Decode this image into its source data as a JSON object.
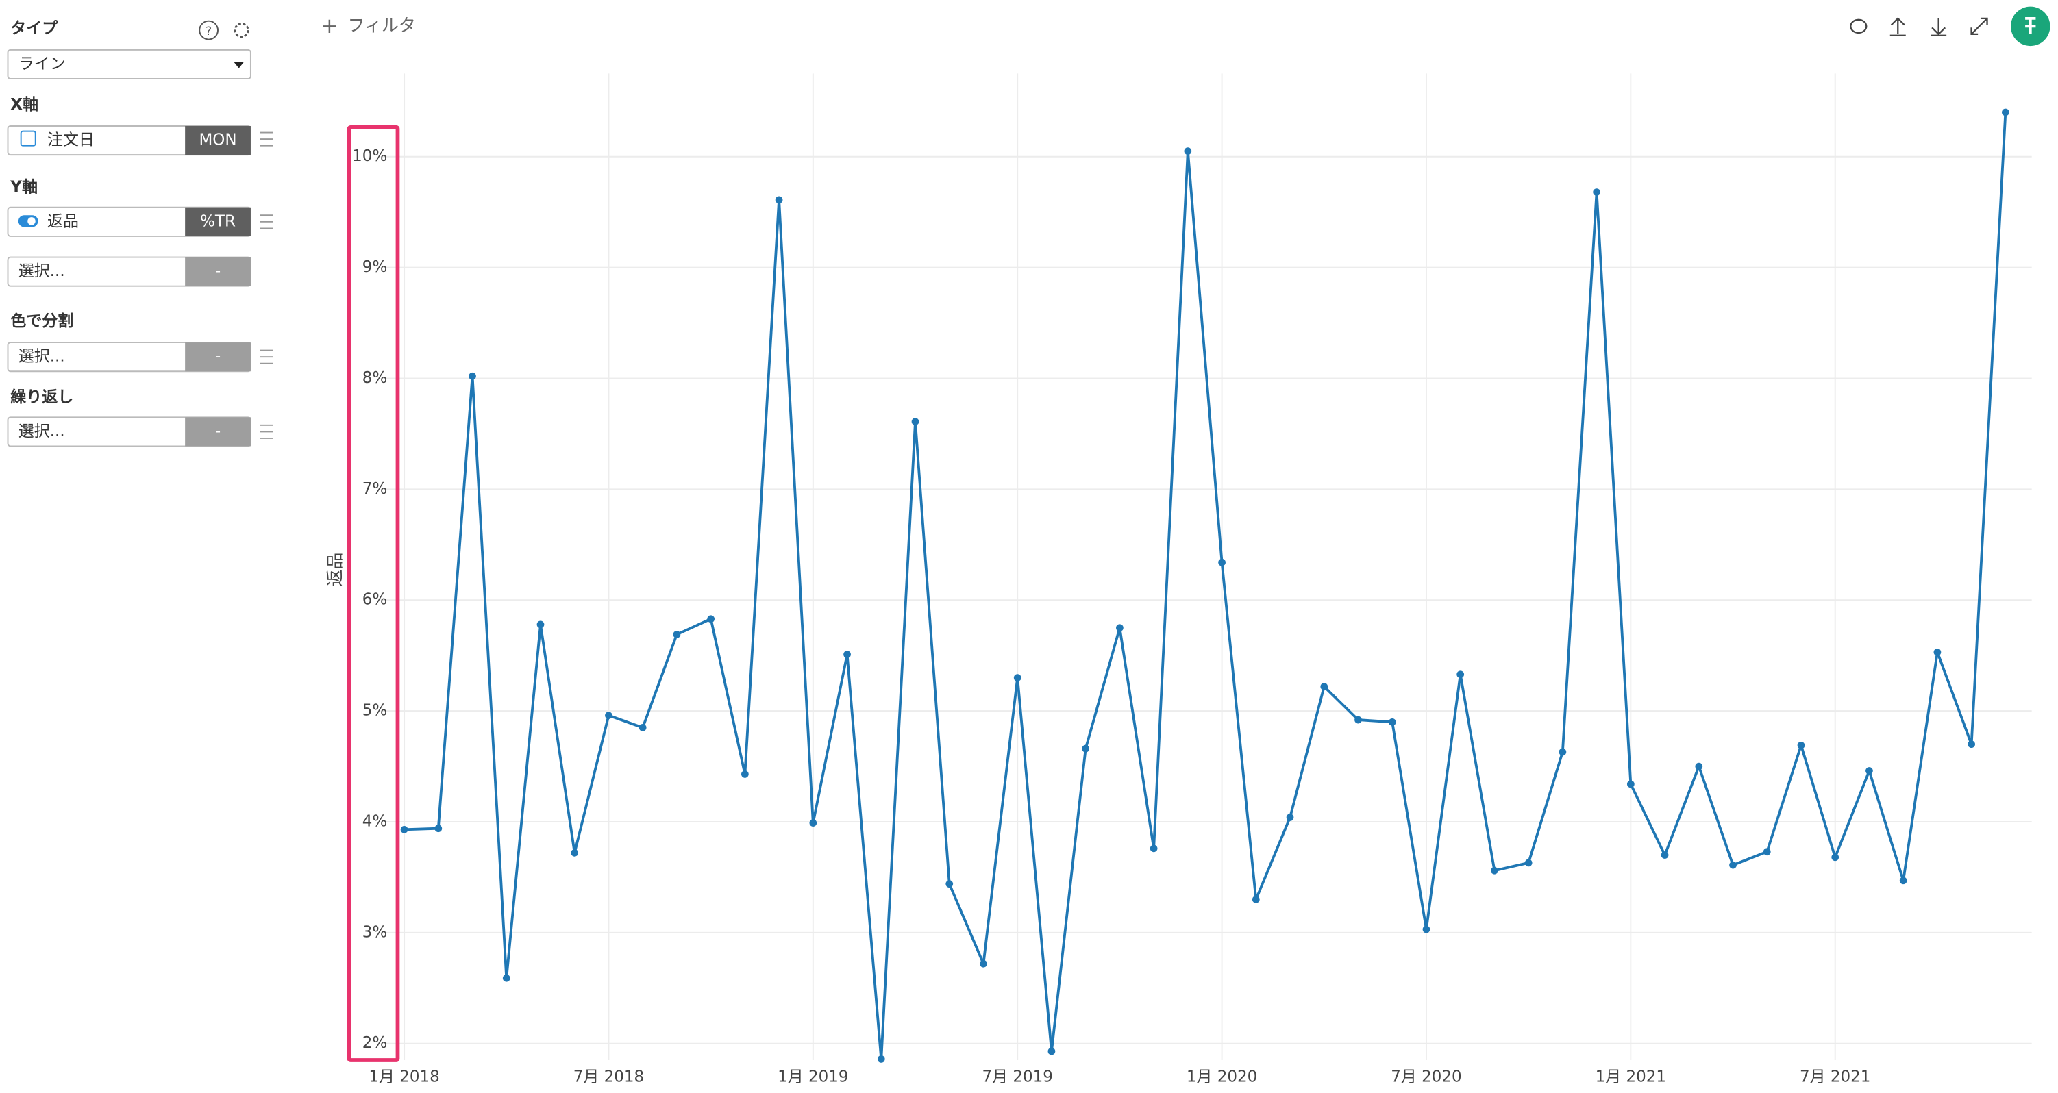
{
  "sidebar": {
    "type_label": "タイプ",
    "type_value": "ライン",
    "x_label": "X軸",
    "x_field": "注文日",
    "x_agg": "MON",
    "y_label": "Y軸",
    "y_field": "返品",
    "y_agg": "%TR",
    "y_extra": "選択...",
    "y_extra_agg": "-",
    "color_label": "色で分割",
    "color_field": "選択...",
    "color_agg": "-",
    "repeat_label": "繰り返し",
    "repeat_field": "選択...",
    "repeat_agg": "-"
  },
  "toolbar": {
    "filter": "フィルタ"
  },
  "chart_data": {
    "type": "line",
    "y_label": "返品",
    "color": "#1f77b4",
    "categories": [
      "1月 2018",
      null,
      null,
      null,
      null,
      null,
      "7月 2018",
      null,
      null,
      null,
      null,
      null,
      "1月 2019",
      null,
      null,
      null,
      null,
      null,
      "7月 2019",
      null,
      null,
      null,
      null,
      null,
      "1月 2020",
      null,
      null,
      null,
      null,
      null,
      "7月 2020",
      null,
      null,
      null,
      null,
      null,
      "1月 2021",
      null,
      null,
      null,
      null,
      null,
      "7月 2021",
      null,
      null,
      null,
      null,
      null
    ],
    "values": [
      3.93,
      3.94,
      8.02,
      2.59,
      5.78,
      3.72,
      4.96,
      4.85,
      5.69,
      5.83,
      4.43,
      9.61,
      3.99,
      5.51,
      1.86,
      7.61,
      3.44,
      2.72,
      5.3,
      1.93,
      4.66,
      5.75,
      3.76,
      10.05,
      6.34,
      3.3,
      4.04,
      5.22,
      4.92,
      4.9,
      3.03,
      5.33,
      3.56,
      3.63,
      4.63,
      9.68,
      4.34,
      3.7,
      4.5,
      3.61,
      3.73,
      4.69,
      3.68,
      4.46,
      3.47,
      5.53,
      4.7,
      10.4
    ],
    "ylim": [
      1.85,
      10.75
    ],
    "yticks": [
      {
        "value": 2,
        "label": "2%"
      },
      {
        "value": 3,
        "label": "3%"
      },
      {
        "value": 4,
        "label": "4%"
      },
      {
        "value": 5,
        "label": "5%"
      },
      {
        "value": 6,
        "label": "6%"
      },
      {
        "value": 7,
        "label": "7%"
      },
      {
        "value": 8,
        "label": "8%"
      },
      {
        "value": 9,
        "label": "9%"
      },
      {
        "value": 10,
        "label": "10%"
      }
    ],
    "grid": true
  }
}
